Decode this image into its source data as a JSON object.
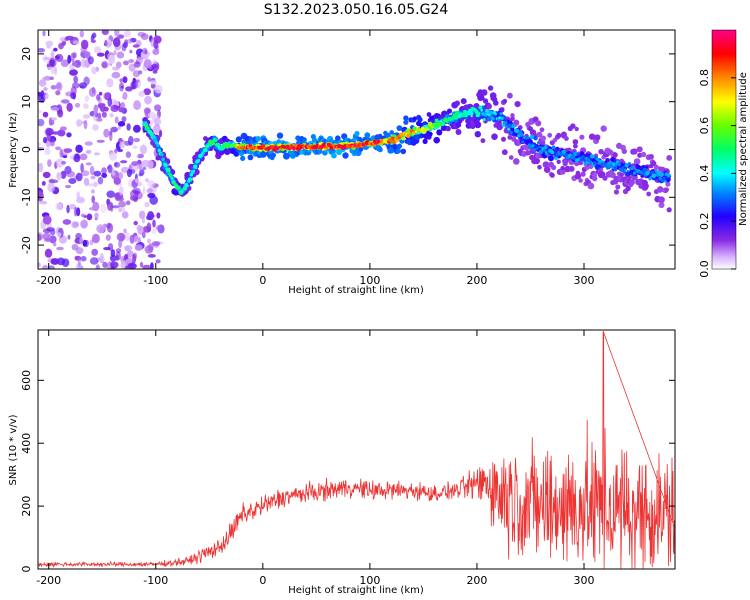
{
  "figure": {
    "title": "S132.2023.050.16.05.G24"
  },
  "chart_data": [
    {
      "type": "heatmap",
      "name": "spectrogram",
      "xlabel": "Height of straight line (km)",
      "ylabel": "Frequency (Hz)",
      "xlim": [
        -210,
        385
      ],
      "ylim": [
        -25,
        25
      ],
      "xticks": [
        -200,
        -100,
        0,
        100,
        200,
        300
      ],
      "yticks": [
        -20,
        -10,
        0,
        10,
        20
      ],
      "colorbar": {
        "label": "Normalized spectral amplitude",
        "range": [
          0,
          1
        ],
        "ticks": [
          "0.0",
          "0.2",
          "0.4",
          "0.6",
          "0.8"
        ],
        "tick_values": [
          0,
          0.2,
          0.4,
          0.6,
          0.8
        ],
        "colormap": "hsv"
      },
      "ridge": {
        "x": [
          -110,
          -100,
          -90,
          -80,
          -75,
          -70,
          -60,
          -50,
          -45,
          -40,
          -35,
          -30,
          -20,
          0,
          20,
          40,
          60,
          80,
          100,
          120,
          140,
          160,
          180,
          200,
          220,
          240,
          260,
          280,
          300,
          320,
          340,
          360,
          380
        ],
        "freq": [
          5,
          2,
          -4,
          -8,
          -9,
          -7,
          -2,
          1,
          2,
          0,
          1,
          1,
          0.5,
          0.3,
          0.4,
          0.6,
          0.7,
          0.8,
          1.2,
          2,
          3.5,
          5,
          7,
          8,
          7,
          3,
          0,
          -1,
          -2,
          -3,
          -4,
          -5,
          -6
        ],
        "amplitude": [
          0.55,
          0.4,
          0.45,
          0.55,
          0.5,
          0.45,
          0.45,
          0.5,
          0.55,
          0.5,
          0.6,
          0.55,
          0.9,
          0.97,
          0.97,
          0.97,
          0.97,
          0.97,
          0.97,
          0.85,
          0.8,
          0.6,
          0.5,
          0.45,
          0.4,
          0.35,
          0.35,
          0.35,
          0.35,
          0.35,
          0.35,
          0.35,
          0.35
        ]
      },
      "noise_region": {
        "x_range": [
          -210,
          -95
        ],
        "amplitude": 0.1
      }
    },
    {
      "type": "line",
      "name": "snr",
      "xlabel": "Height of straight line (km)",
      "ylabel": "SNR (10 * v/v)",
      "xlim": [
        -210,
        385
      ],
      "ylim": [
        0,
        760
      ],
      "xticks": [
        -200,
        -100,
        0,
        100,
        200,
        300
      ],
      "yticks": [
        0,
        200,
        400,
        600
      ],
      "color": "#ee3333",
      "envelope": {
        "x": [
          -210,
          -100,
          -70,
          -60,
          -40,
          -30,
          -20,
          0,
          20,
          40,
          60,
          80,
          100,
          120,
          140,
          160,
          180,
          200,
          210,
          220,
          240,
          260,
          280,
          300,
          320,
          340,
          360,
          385
        ],
        "mean": [
          15,
          15,
          25,
          40,
          70,
          110,
          170,
          200,
          230,
          240,
          250,
          260,
          250,
          250,
          250,
          240,
          250,
          270,
          280,
          240,
          220,
          200,
          200,
          200,
          190,
          180,
          180,
          170
        ],
        "spread": [
          8,
          8,
          15,
          25,
          30,
          40,
          40,
          40,
          35,
          35,
          35,
          35,
          35,
          35,
          35,
          30,
          30,
          60,
          120,
          180,
          200,
          220,
          230,
          240,
          240,
          230,
          230,
          220
        ]
      },
      "peak": {
        "x": 318,
        "y": 755
      }
    }
  ]
}
